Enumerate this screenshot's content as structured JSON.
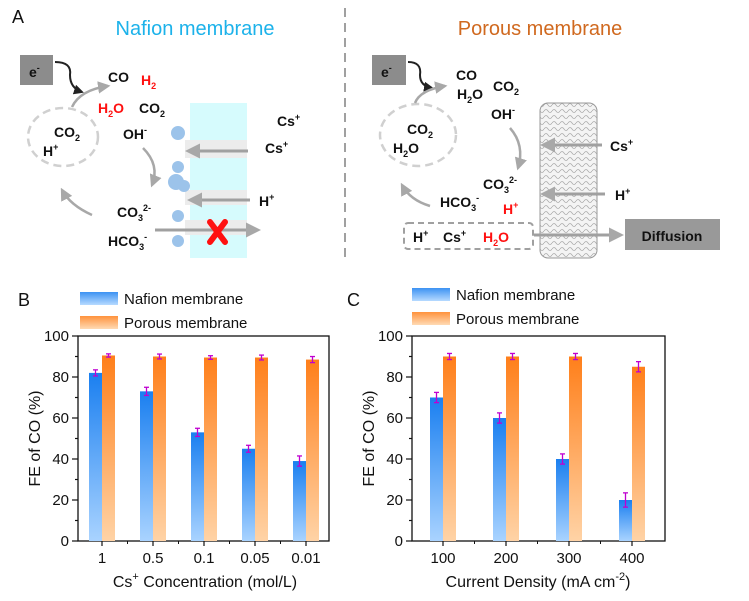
{
  "panel_a": {
    "label": "A",
    "nafion": {
      "title": "Nafion membrane",
      "title_color": "#1cb2ea",
      "e": [
        "e",
        "-"
      ],
      "co": "CO",
      "h2": [
        "H",
        "2"
      ],
      "h2o": [
        "H",
        "2",
        "O"
      ],
      "co2": [
        "CO",
        "2"
      ],
      "cycle_co2": [
        "CO",
        "2"
      ],
      "cycle_h": [
        "H",
        "+"
      ],
      "oh": [
        "OH",
        "-"
      ],
      "cs1": [
        "Cs",
        "+"
      ],
      "cs2": [
        "Cs",
        "+"
      ],
      "hplus": [
        "H",
        "+"
      ],
      "co3": [
        "CO",
        "3",
        "2-"
      ],
      "hco3": [
        "HCO",
        "3",
        "-"
      ]
    },
    "porous": {
      "title": "Porous membrane",
      "title_color": "#d0691f",
      "e": [
        "e",
        "-"
      ],
      "co": "CO",
      "h2o": [
        "H",
        "2",
        "O"
      ],
      "co2": [
        "CO",
        "2"
      ],
      "oh": [
        "OH",
        "-"
      ],
      "cycle_co2": [
        "CO",
        "2"
      ],
      "cycle_h2o": [
        "H",
        "2",
        "O"
      ],
      "cs": [
        "Cs",
        "+"
      ],
      "hplus": [
        "H",
        "+"
      ],
      "co3": [
        "CO",
        "3",
        "2-"
      ],
      "hco3": [
        "HCO",
        "3",
        "-"
      ],
      "hplus_red": [
        "H",
        "+"
      ],
      "box_h": [
        "H",
        "+"
      ],
      "box_cs": [
        "Cs",
        "+"
      ],
      "box_h2o": [
        "H",
        "2",
        "O"
      ],
      "diffusion": "Diffusion"
    }
  },
  "chart_data": [
    {
      "panel_label": "B",
      "type": "bar",
      "categories": [
        "1",
        "0.5",
        "0.1",
        "0.05",
        "0.01"
      ],
      "xlabel": [
        "Cs",
        "+",
        " Concentration (mol/L)"
      ],
      "ylabel": "FE of CO (%)",
      "ylim": [
        0,
        100
      ],
      "yticks": [
        "0",
        "20",
        "40",
        "60",
        "80",
        "100"
      ],
      "legend_placement": "top-left, above plot",
      "series": [
        {
          "name": "Nafion membrane",
          "color": "#1a7ff0",
          "values": [
            82,
            73,
            53,
            45,
            39
          ],
          "errors": [
            1,
            1.5,
            1.5,
            1.2,
            2
          ]
        },
        {
          "name": "Porous membrane",
          "color": "#ff7f1a",
          "values": [
            90.5,
            90,
            89.5,
            89.5,
            88.5
          ],
          "errors": [
            0.3,
            0.7,
            0.4,
            0.7,
            1
          ]
        }
      ],
      "error_bar_color": "#c000d0"
    },
    {
      "panel_label": "C",
      "type": "bar",
      "categories": [
        "100",
        "200",
        "300",
        "400"
      ],
      "xlabel": [
        "Current Density (mA cm",
        "-2",
        ")"
      ],
      "ylabel": "FE of CO (%)",
      "ylim": [
        0,
        100
      ],
      "yticks": [
        "0",
        "20",
        "40",
        "60",
        "80",
        "100"
      ],
      "legend_placement": "top-left, above plot",
      "series": [
        {
          "name": "Nafion membrane",
          "color": "#1a7ff0",
          "values": [
            70,
            60,
            40,
            20
          ],
          "errors": [
            2,
            2,
            2,
            3
          ]
        },
        {
          "name": "Porous membrane",
          "color": "#ff7f1a",
          "values": [
            90,
            90,
            90,
            85
          ],
          "errors": [
            1,
            1,
            1,
            2
          ]
        }
      ],
      "error_bar_color": "#c000d0"
    }
  ]
}
